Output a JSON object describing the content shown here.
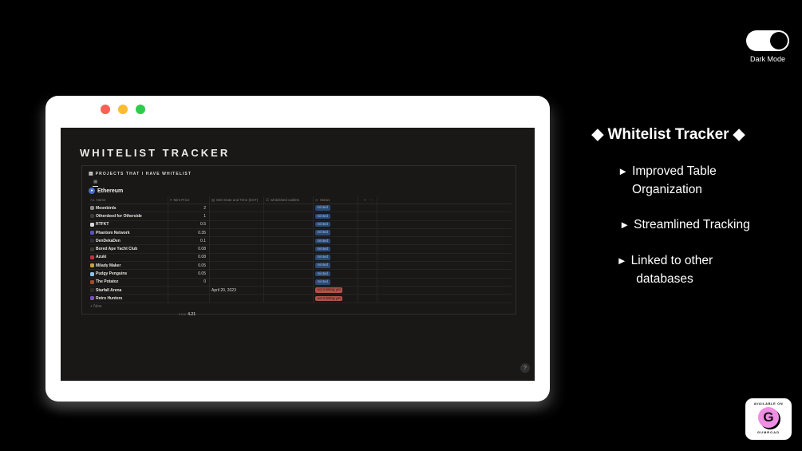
{
  "dark_mode_toggle": {
    "label": "Dark Mode"
  },
  "window": {
    "page_title": "WHITELIST TRACKER",
    "database": {
      "icon": "▦",
      "title": "PROJECTS THAT I HAVE WHITELIST",
      "view_tab_icon": "▦",
      "group": {
        "icon": "♦",
        "label": "Ethereum"
      },
      "columns": [
        {
          "prefix": "Aa",
          "label": "Name"
        },
        {
          "prefix": "#",
          "label": "Mint Price"
        },
        {
          "prefix": "▤",
          "label": "Mint Date and Time (EST)"
        },
        {
          "prefix": "☑",
          "label": "whitelisted wallets"
        },
        {
          "prefix": "⊙",
          "label": "Status"
        }
      ],
      "add_column": "+",
      "more_options": "⋯",
      "rows": [
        {
          "name": "Moonbirds",
          "icon": "moonbirds-icon",
          "icon_color": "#8a8a8a",
          "price": "2",
          "date": "",
          "wallets": "",
          "status": "minted",
          "status_color": "blue"
        },
        {
          "name": "Otherdeed for Otherside",
          "icon": "otherdeed-icon",
          "icon_color": "#3d3d3d",
          "price": "1",
          "date": "",
          "wallets": "",
          "status": "minted",
          "status_color": "blue"
        },
        {
          "name": "RTFKT",
          "icon": "rtfkt-icon",
          "icon_color": "#d9d9d9",
          "price": "0.5",
          "date": "",
          "wallets": "",
          "status": "minted",
          "status_color": "blue"
        },
        {
          "name": "Phantom Network",
          "icon": "phantom-icon",
          "icon_color": "#5a52c7",
          "price": "0.35",
          "date": "",
          "wallets": "",
          "status": "minted",
          "status_color": "blue"
        },
        {
          "name": "DenDekaDen",
          "icon": "dendekaden-icon",
          "icon_color": "#2e2e2e",
          "price": "0.1",
          "date": "",
          "wallets": "",
          "status": "minted",
          "status_color": "blue"
        },
        {
          "name": "Bored Ape Yacht Club",
          "icon": "bayc-icon",
          "icon_color": "#3a3a2c",
          "price": "0.08",
          "date": "",
          "wallets": "",
          "status": "minted",
          "status_color": "blue"
        },
        {
          "name": "Azuki",
          "icon": "azuki-icon",
          "icon_color": "#c03540",
          "price": "0.08",
          "date": "",
          "wallets": "",
          "status": "minted",
          "status_color": "blue"
        },
        {
          "name": "Milady Maker",
          "icon": "milady-icon",
          "icon_color": "#c9a13b",
          "price": "0.05",
          "date": "",
          "wallets": "",
          "status": "minted",
          "status_color": "blue"
        },
        {
          "name": "Pudgy Penguins",
          "icon": "pudgy-icon",
          "icon_color": "#8fc1e8",
          "price": "0.05",
          "date": "",
          "wallets": "",
          "status": "minted",
          "status_color": "blue"
        },
        {
          "name": "The Potatoz",
          "icon": "potatoz-icon",
          "icon_color": "#a34b2e",
          "price": "0",
          "date": "",
          "wallets": "",
          "status": "minted",
          "status_color": "blue"
        },
        {
          "name": "Starfall Arena",
          "icon": "starfall-icon",
          "icon_color": "#2b2b2b",
          "price": "",
          "date": "April 20, 2023",
          "wallets": "",
          "status": "not minting yet",
          "status_color": "red"
        },
        {
          "name": "Retro Hunters",
          "icon": "retro-hunters-icon",
          "icon_color": "#7b4fc9",
          "price": "",
          "date": "",
          "wallets": "",
          "status": "not minting yet",
          "status_color": "red"
        }
      ],
      "new_row": "+ New",
      "sum": {
        "label": "SUM",
        "value": "4.21"
      }
    },
    "help": "?"
  },
  "panel": {
    "title": "◆ Whitelist Tracker ◆",
    "bullet_icon": "►",
    "bullets": [
      "Improved Table Organization",
      "Streamlined Tracking",
      "Linked to other databases"
    ]
  },
  "gumroad": {
    "top": "AVAILABLE ON",
    "letter": "G",
    "bottom": "GUMROAD"
  },
  "colors": {
    "status_minted_bg": "#2b4a73",
    "status_minted_text": "#9db9e2",
    "status_not_minting_bg": "#b0544a",
    "status_not_minting_text": "#2a1210",
    "ethereum_blue": "#4a6fc8",
    "gumroad_pink": "#ef8ee3",
    "traffic_red": "#f96156",
    "traffic_yellow": "#fdbc2f",
    "traffic_green": "#2ecc4e"
  }
}
